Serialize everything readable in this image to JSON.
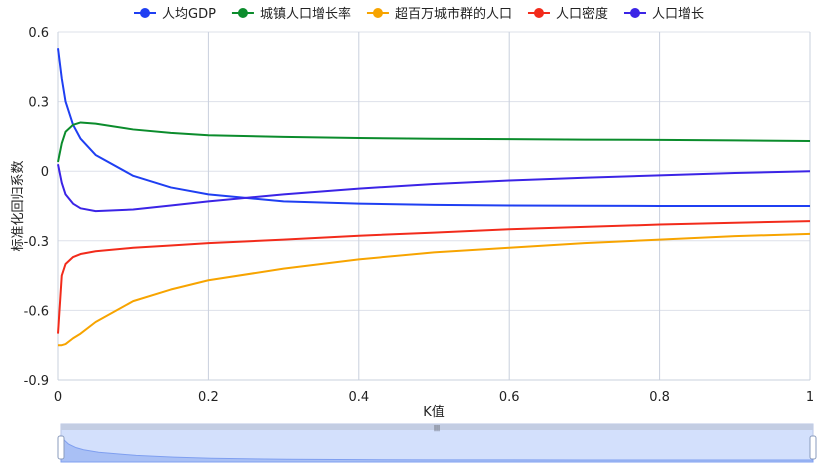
{
  "chart_data": {
    "type": "line",
    "xlabel": "K值",
    "ylabel": "标准化回归系数",
    "xlim": [
      0,
      1
    ],
    "ylim": [
      -0.9,
      0.6
    ],
    "xticks": [
      "0",
      "0.2",
      "0.4",
      "0.6",
      "0.8",
      "1"
    ],
    "yticks": [
      "0.6",
      "0.3",
      "0",
      "-0.3",
      "-0.6",
      "-0.9"
    ],
    "grid": true,
    "legend_position": "top",
    "x": [
      0,
      0.005,
      0.01,
      0.02,
      0.03,
      0.05,
      0.1,
      0.15,
      0.2,
      0.3,
      0.4,
      0.5,
      0.6,
      0.7,
      0.8,
      0.9,
      1
    ],
    "series": [
      {
        "name": "人均GDP",
        "color": "#1f3ff2",
        "values": [
          0.53,
          0.4,
          0.3,
          0.2,
          0.14,
          0.07,
          -0.02,
          -0.07,
          -0.1,
          -0.13,
          -0.14,
          -0.145,
          -0.148,
          -0.149,
          -0.15,
          -0.15,
          -0.15
        ]
      },
      {
        "name": "城镇人口增长率",
        "color": "#0b8c2c",
        "values": [
          0.04,
          0.12,
          0.17,
          0.2,
          0.21,
          0.205,
          0.18,
          0.165,
          0.155,
          0.148,
          0.143,
          0.14,
          0.138,
          0.136,
          0.135,
          0.133,
          0.13
        ]
      },
      {
        "name": "超百万城市群的人口",
        "color": "#f7a400",
        "values": [
          -0.75,
          -0.75,
          -0.745,
          -0.72,
          -0.7,
          -0.65,
          -0.56,
          -0.51,
          -0.47,
          -0.42,
          -0.38,
          -0.35,
          -0.33,
          -0.31,
          -0.295,
          -0.28,
          -0.27
        ]
      },
      {
        "name": "人口密度",
        "color": "#f22b1b",
        "values": [
          -0.7,
          -0.45,
          -0.4,
          -0.37,
          -0.357,
          -0.345,
          -0.33,
          -0.32,
          -0.31,
          -0.295,
          -0.278,
          -0.265,
          -0.25,
          -0.24,
          -0.23,
          -0.222,
          -0.215
        ]
      },
      {
        "name": "人口增长",
        "color": "#3b24e6",
        "values": [
          0.03,
          -0.05,
          -0.1,
          -0.14,
          -0.16,
          -0.172,
          -0.165,
          -0.148,
          -0.13,
          -0.1,
          -0.075,
          -0.055,
          -0.04,
          -0.028,
          -0.018,
          -0.008,
          0
        ]
      }
    ],
    "data_zoom": {
      "start": 0,
      "end": 1
    }
  }
}
